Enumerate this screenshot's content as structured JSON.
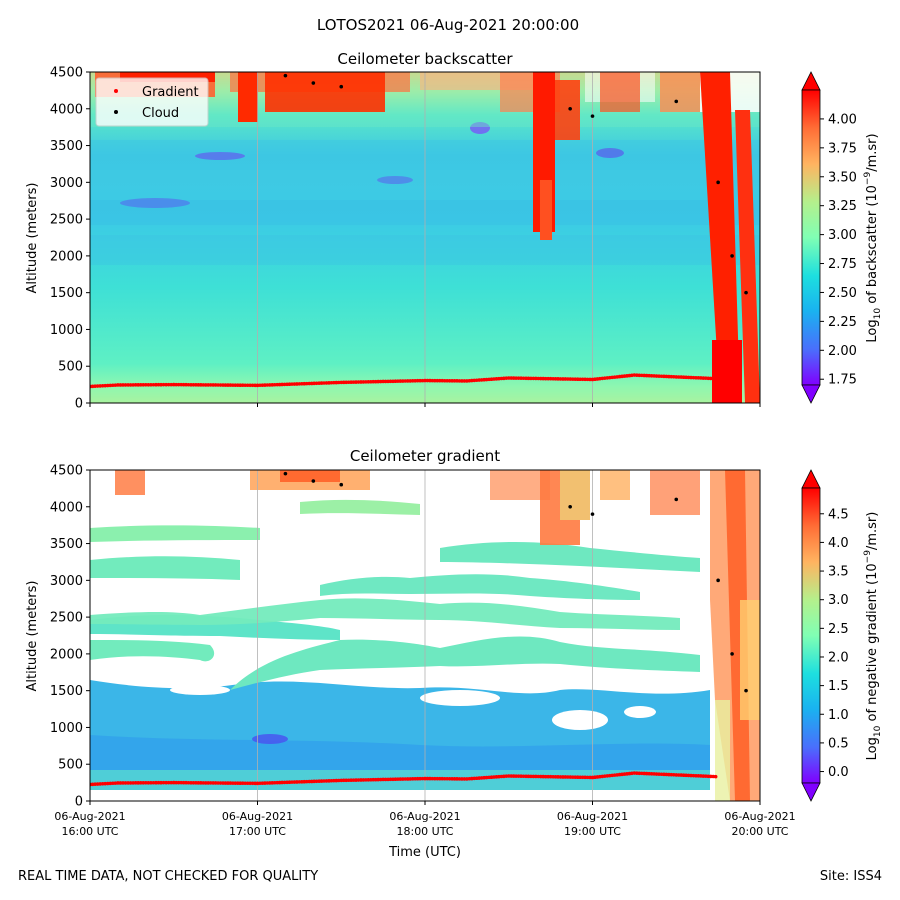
{
  "figure": {
    "suptitle": "LOTOS2021 06-Aug-2021 20:00:00",
    "footer_left": "REAL TIME DATA, NOT CHECKED FOR QUALITY",
    "footer_right": "Site: ISS4"
  },
  "chart_data": [
    {
      "type": "heatmap",
      "title": "Ceilometer backscatter",
      "ylabel": "Altitude (meters)",
      "xlabel": "",
      "ylim": [
        0,
        4500
      ],
      "yticks": [
        "0",
        "500",
        "1000",
        "1500",
        "2000",
        "2500",
        "3000",
        "3500",
        "4000",
        "4500"
      ],
      "xlim": [
        "2021-08-06 16:00",
        "2021-08-06 20:00"
      ],
      "grid": "vertical lines at hourly ticks",
      "legend": {
        "placement": "top-left",
        "entries": [
          {
            "label": "Gradient",
            "color": "#ff0000"
          },
          {
            "label": "Cloud",
            "color": "#000000"
          }
        ]
      },
      "colorbar": {
        "label": "Log10 of backscatter (10^-9/m.sr)",
        "label_parts": {
          "pre": "Log",
          "sub": "10",
          "mid": " of backscatter (10",
          "sup": "−9",
          "post": "/m.sr)"
        },
        "ticks": [
          "1.75",
          "2.00",
          "2.25",
          "2.50",
          "2.75",
          "3.00",
          "3.25",
          "3.50",
          "3.75",
          "4.00"
        ],
        "range": [
          1.7,
          4.25
        ],
        "extend": "both",
        "colormap": "rainbow"
      },
      "series": [
        {
          "name": "Gradient",
          "color": "#ff0000",
          "x": [
            "16:00",
            "16:10",
            "16:30",
            "17:00",
            "17:30",
            "18:00",
            "18:15",
            "18:30",
            "19:00",
            "19:15",
            "19:45"
          ],
          "y": [
            225,
            245,
            250,
            240,
            280,
            305,
            300,
            340,
            320,
            380,
            330
          ]
        },
        {
          "name": "Cloud",
          "color": "#000000",
          "x": [
            "17:10",
            "17:20",
            "17:30",
            "18:52",
            "19:00",
            "19:30",
            "19:45",
            "19:50",
            "19:55"
          ],
          "y": [
            4450,
            4350,
            4300,
            4000,
            3900,
            4100,
            3000,
            2000,
            1500
          ]
        }
      ]
    },
    {
      "type": "heatmap",
      "title": "Ceilometer gradient",
      "ylabel": "Altitude (meters)",
      "xlabel": "Time (UTC)",
      "ylim": [
        0,
        4500
      ],
      "yticks": [
        "0",
        "500",
        "1000",
        "1500",
        "2000",
        "2500",
        "3000",
        "3500",
        "4000",
        "4500"
      ],
      "xlim": [
        "2021-08-06 16:00",
        "2021-08-06 20:00"
      ],
      "xticks": [
        {
          "date": "06-Aug-2021",
          "time": "16:00 UTC"
        },
        {
          "date": "06-Aug-2021",
          "time": "17:00 UTC"
        },
        {
          "date": "06-Aug-2021",
          "time": "18:00 UTC"
        },
        {
          "date": "06-Aug-2021",
          "time": "19:00 UTC"
        },
        {
          "date": "06-Aug-2021",
          "time": "20:00 UTC"
        }
      ],
      "grid": "vertical lines at hourly ticks",
      "colorbar": {
        "label": "Log10 of negative gradient (10^-9/m.sr)",
        "label_parts": {
          "pre": "Log",
          "sub": "10",
          "mid": " of negative gradient (10",
          "sup": "−9",
          "post": "/m.sr)"
        },
        "ticks": [
          "0.0",
          "0.5",
          "1.0",
          "1.5",
          "2.0",
          "2.5",
          "3.0",
          "3.5",
          "4.0",
          "4.5"
        ],
        "range": [
          -0.2,
          4.95
        ],
        "extend": "both",
        "colormap": "rainbow"
      },
      "series": [
        {
          "name": "Gradient",
          "color": "#ff0000",
          "x": [
            "16:00",
            "16:10",
            "16:30",
            "17:00",
            "17:30",
            "18:00",
            "18:15",
            "18:30",
            "19:00",
            "19:15",
            "19:45"
          ],
          "y": [
            225,
            245,
            250,
            240,
            280,
            305,
            300,
            340,
            320,
            380,
            330
          ]
        },
        {
          "name": "Cloud",
          "color": "#000000",
          "x": [
            "17:10",
            "17:20",
            "17:30",
            "18:52",
            "19:00",
            "19:30",
            "19:45",
            "19:50",
            "19:55"
          ],
          "y": [
            4450,
            4350,
            4300,
            4000,
            3900,
            4100,
            3000,
            2000,
            1500
          ]
        }
      ]
    }
  ]
}
